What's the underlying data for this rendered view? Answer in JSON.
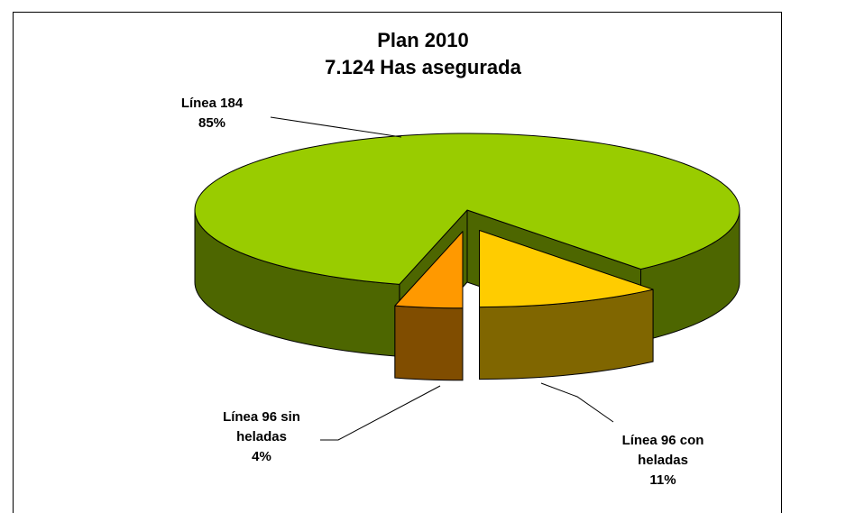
{
  "chart_data": {
    "type": "pie3d",
    "title": "Plan 2010",
    "subtitle": "7.124 Has asegurada",
    "categories": [
      "Línea 184",
      "Línea 96 con heladas",
      "Línea 96 sin heladas"
    ],
    "values": [
      85,
      11,
      4
    ],
    "value_labels": [
      "85%",
      "11%",
      "4%"
    ],
    "colors": [
      "#99cc00",
      "#ffcc00",
      "#ff9900"
    ]
  }
}
